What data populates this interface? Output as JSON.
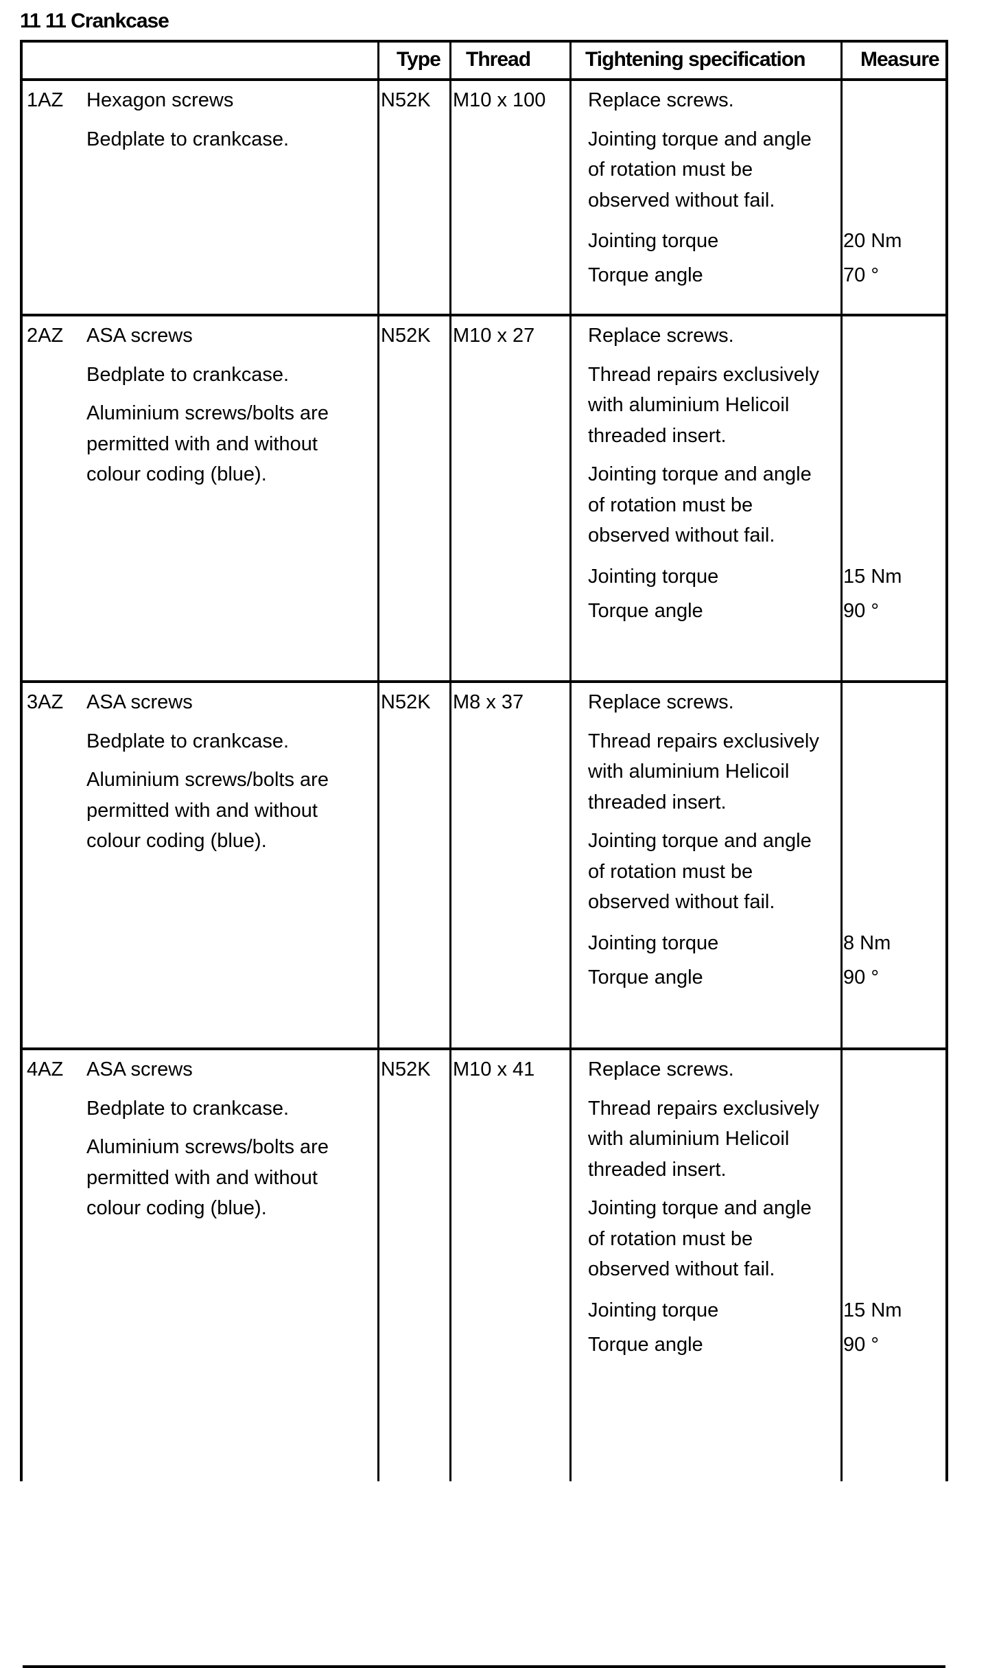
{
  "title": "11 11 Crankcase",
  "headers": {
    "type": "Type",
    "thread": "Thread",
    "spec": "Tightening specification",
    "measure": "Measure"
  },
  "rows": [
    {
      "code": "1AZ",
      "desc": [
        "Hexagon screws",
        "Bedplate to crankcase."
      ],
      "type": "N52K",
      "thread": "M10 x 100",
      "spec": [
        "Replace screws.",
        "Jointing torque and angle of rotation must be observed without fail."
      ],
      "measures": [
        {
          "label": "Jointing torque",
          "value": "20 Nm"
        },
        {
          "label": "Torque angle",
          "value": "70 °"
        }
      ]
    },
    {
      "code": "2AZ",
      "desc": [
        "ASA screws",
        "Bedplate to crankcase.",
        "Aluminium screws/bolts are permitted with and without colour coding (blue)."
      ],
      "type": "N52K",
      "thread": "M10 x 27",
      "spec": [
        "Replace screws.",
        "Thread repairs exclusively with aluminium Helicoil threaded insert.",
        "Jointing torque and angle of rotation must be observed without fail."
      ],
      "measures": [
        {
          "label": "Jointing torque",
          "value": "15 Nm"
        },
        {
          "label": "Torque angle",
          "value": "90 °"
        }
      ]
    },
    {
      "code": "3AZ",
      "desc": [
        "ASA screws",
        "Bedplate to crankcase.",
        "Aluminium screws/bolts are permitted with and without colour coding (blue)."
      ],
      "type": "N52K",
      "thread": "M8 x 37",
      "spec": [
        "Replace screws.",
        "Thread repairs exclusively with aluminium Helicoil threaded insert.",
        "Jointing torque and angle of rotation must be observed without fail."
      ],
      "measures": [
        {
          "label": "Jointing torque",
          "value": "8 Nm"
        },
        {
          "label": "Torque angle",
          "value": "90 °"
        }
      ]
    },
    {
      "code": "4AZ",
      "desc": [
        "ASA screws",
        "Bedplate to crankcase.",
        "Aluminium screws/bolts are permitted with and without colour coding (blue)."
      ],
      "type": "N52K",
      "thread": "M10 x 41",
      "spec": [
        "Replace screws.",
        "Thread repairs exclusively with aluminium Helicoil threaded insert.",
        "Jointing torque and angle of rotation must be observed without fail."
      ],
      "measures": [
        {
          "label": "Jointing torque",
          "value": "15 Nm"
        },
        {
          "label": "Torque angle",
          "value": "90 °"
        }
      ]
    }
  ]
}
